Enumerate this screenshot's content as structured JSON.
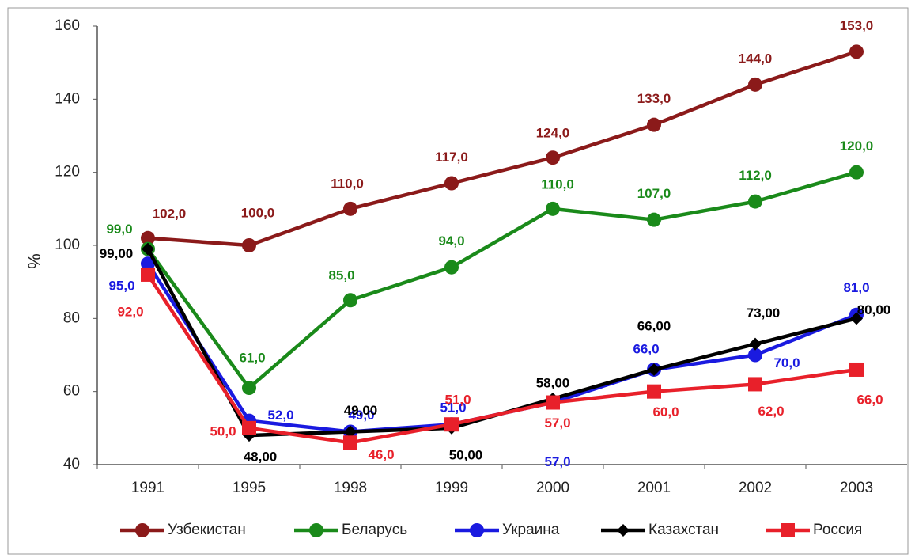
{
  "chart_data": {
    "type": "line",
    "y_label": "%",
    "categories": [
      "1991",
      "1995",
      "1998",
      "1999",
      "2000",
      "2001",
      "2002",
      "2003"
    ],
    "series": [
      {
        "name": "Узбекистан",
        "color": "#8b1a1a",
        "marker": "circle",
        "values": [
          102,
          100,
          110,
          117,
          124,
          133,
          144,
          153
        ],
        "value_labels": [
          "102,0",
          "100,0",
          "110,0",
          "117,0",
          "124,0",
          "133,0",
          "144,0",
          "153,0"
        ]
      },
      {
        "name": "Беларусь",
        "color": "#1a8a1a",
        "marker": "circle",
        "values": [
          99,
          61,
          85,
          94,
          110,
          107,
          112,
          120
        ],
        "value_labels": [
          "99,0",
          "61,0",
          "85,0",
          "94,0",
          "110,0",
          "107,0",
          "112,0",
          "120,0"
        ]
      },
      {
        "name": "Украина",
        "color": "#1a1ae0",
        "marker": "circle",
        "values": [
          95,
          52,
          49,
          51,
          57,
          66,
          70,
          81
        ],
        "value_labels": [
          "95,0",
          "52,0",
          "49,0",
          "51,0",
          "57,0",
          "66,0",
          "70,0",
          "81,0"
        ]
      },
      {
        "name": "Казахстан",
        "color": "#000000",
        "marker": "diamond",
        "values": [
          99,
          48,
          49,
          50,
          58,
          66,
          73,
          80
        ],
        "value_labels": [
          "99,00",
          "48,00",
          "49,00",
          "50,00",
          "58,00",
          "66,00",
          "73,00",
          "80,00"
        ]
      },
      {
        "name": "Россия",
        "color": "#e8202a",
        "marker": "square",
        "values": [
          92,
          50,
          46,
          51,
          57,
          60,
          62,
          66
        ],
        "value_labels": [
          "92,0",
          "50,0",
          "46,0",
          "51,0",
          "57,0",
          "60,0",
          "62,0",
          "66,0"
        ]
      }
    ],
    "ylim": [
      40,
      160
    ],
    "yticks": [
      40,
      60,
      80,
      100,
      120,
      140,
      160
    ],
    "grid": false,
    "legend": "bottom"
  }
}
